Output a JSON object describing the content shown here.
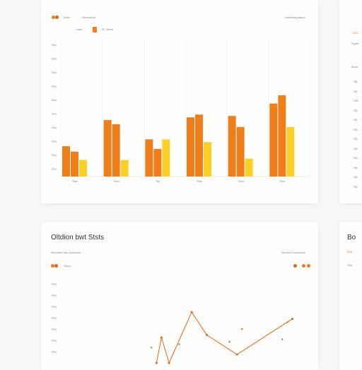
{
  "colors": {
    "accent_orange": "#ef7f1a",
    "accent_dark_orange": "#e0661b",
    "accent_yellow": "#f9cf28",
    "grid": "#efefef",
    "background": "#f7f7f6",
    "card": "#fdfdfc"
  },
  "top_card": {
    "legend_label": "Wbsi",
    "header_text": "Sbsenstod",
    "header_right": "Wedsllaanatiord",
    "control_left": "Dalo",
    "control_mid": "Sbold",
    "control_icon": "menu-icon"
  },
  "top_side_card": {
    "label_accent": "Seo",
    "label_a": "Sgrtsl",
    "label_b": "Bnud",
    "ticks": [
      "SB",
      "SB",
      "SW",
      "SB",
      "SB",
      "SB",
      "SB",
      "SB",
      "SB",
      "SB",
      "SB",
      "SB"
    ]
  },
  "bottom_card": {
    "title": "Oltdion bwt Ststs",
    "subtitle": "Bwoulted Sso Saarnoat",
    "header_right": "Wended Ssmsrsoe",
    "legend_label": "Stsso"
  },
  "bottom_side_card": {
    "title": "Bo",
    "subtitle": "Bnd",
    "label": "Sbo"
  },
  "chart_data": [
    {
      "type": "bar",
      "categories": [
        "Sbst",
        "Sbsl",
        "Sbl",
        "Sbdl",
        "Sbsl",
        "Sbst"
      ],
      "y_tick_labels": [
        "Sbo",
        "Sbo",
        "Sbo",
        "Sbo",
        "Sbo",
        "Sbo",
        "Sbo",
        "Sbo",
        "Sbo",
        "Sbo"
      ],
      "ylim": [
        0,
        100
      ],
      "grid": true,
      "series": [
        {
          "color": "#ef7f1a",
          "values": [
            22,
            41,
            27,
            43,
            44,
            53
          ]
        },
        {
          "color": "#ef7f1a",
          "values": [
            18,
            38,
            20,
            45,
            36,
            59
          ]
        },
        {
          "color": "#f9cf28",
          "values": [
            12,
            12,
            27,
            25,
            13,
            36
          ]
        }
      ]
    },
    {
      "type": "line",
      "y_tick_labels": [
        "Sbo",
        "Sbo",
        "Sbo",
        "Sbo",
        "Sbo",
        "Sbo",
        "Sbo"
      ],
      "xlim": [
        0,
        100
      ],
      "ylim": [
        0,
        100
      ],
      "grid": true,
      "series": [
        {
          "color": "#e0661b",
          "values": [
            [
              38,
              0
            ],
            [
              40,
              30
            ],
            [
              43,
              0
            ],
            [
              52,
              60
            ],
            [
              58,
              33
            ],
            [
              70,
              10
            ],
            [
              92,
              52
            ]
          ]
        }
      ],
      "points": [
        [
          36,
          18
        ],
        [
          47,
          22
        ],
        [
          67,
          25
        ],
        [
          72,
          40
        ],
        [
          88,
          28
        ],
        [
          90,
          48
        ]
      ]
    }
  ]
}
